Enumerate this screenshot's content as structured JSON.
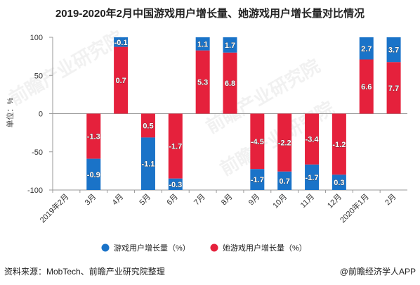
{
  "title": "2019-2020年2月中国游戏用户增长量、她游戏用户增长量对比情况",
  "source": "资料来源：MobTech、前瞻产业研究院整理",
  "brand": "@前瞻经济学人APP",
  "watermark": "前瞻产业研究院",
  "chart_data": {
    "type": "bar",
    "stacked": true,
    "categories": [
      "2019年2月",
      "3月",
      "4月",
      "5月",
      "6月",
      "7月",
      "8月",
      "9月",
      "10月",
      "11月",
      "12月",
      "2020年1月",
      "2月"
    ],
    "ylabel": "单位：%",
    "ylim": [
      -100,
      100
    ],
    "yticks": [
      -100,
      -50,
      0,
      50,
      100
    ],
    "grid": false,
    "legend_position": "bottom",
    "series": [
      {
        "name": "游戏用户增长量（%）",
        "color": "#1a73c8",
        "values": [
          null,
          -0.9,
          -0.1,
          -1.1,
          -0.3,
          1.1,
          1.7,
          -1.7,
          0.7,
          -1.7,
          0.3,
          2.7,
          3.7
        ],
        "labels": [
          "",
          "-0.9",
          "-0.1",
          "-1.1",
          "-0.3",
          "1.1",
          "1.7",
          "-1.7",
          "0.7",
          "-1.7",
          "0.3",
          "2.7",
          "3.7"
        ]
      },
      {
        "name": "她游戏用户增长量（%）",
        "color": "#e5213c",
        "values": [
          null,
          -1.3,
          0.7,
          0.5,
          -1.7,
          5.3,
          6.8,
          -4.5,
          -2.2,
          -3.4,
          -1.2,
          6.6,
          7.7
        ],
        "labels": [
          "",
          "-1.3",
          "0.7",
          "0.5",
          "-1.7",
          "5.3",
          "6.8",
          "-4.5",
          "-2.2",
          "-3.4",
          "-1.2",
          "6.6",
          "7.7"
        ]
      }
    ]
  }
}
